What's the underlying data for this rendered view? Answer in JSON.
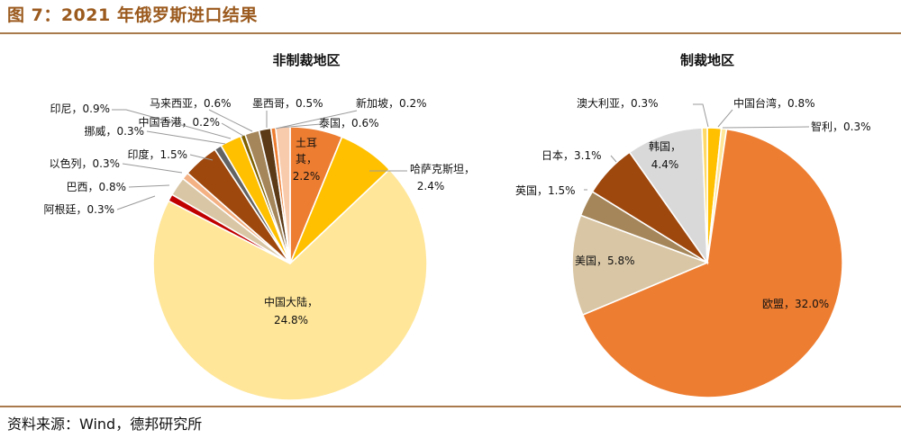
{
  "figure_title": "图 7：2021 年俄罗斯进口结果",
  "source": "资料来源：Wind，德邦研究所",
  "chart_data": [
    {
      "type": "pie",
      "title": "非制裁地区",
      "slices": [
        {
          "label": "土耳其",
          "value": 2.2,
          "pct": "2.2%",
          "color": "#ed7d31"
        },
        {
          "label": "哈萨克斯坦",
          "value": 2.4,
          "pct": "2.4%",
          "color": "#ffc000"
        },
        {
          "label": "中国大陆",
          "value": 24.8,
          "pct": "24.8%",
          "color": "#ffe699"
        },
        {
          "label": "阿根廷",
          "value": 0.3,
          "pct": "0.3%",
          "color": "#c00000"
        },
        {
          "label": "巴西",
          "value": 0.8,
          "pct": "0.8%",
          "color": "#d9c6a5"
        },
        {
          "label": "以色列",
          "value": 0.3,
          "pct": "0.3%",
          "color": "#f4b183"
        },
        {
          "label": "印度",
          "value": 1.5,
          "pct": "1.5%",
          "color": "#9e480e"
        },
        {
          "label": "挪威",
          "value": 0.3,
          "pct": "0.3%",
          "color": "#636363"
        },
        {
          "label": "印尼",
          "value": 0.9,
          "pct": "0.9%",
          "color": "#ffc000"
        },
        {
          "label": "中国香港",
          "value": 0.2,
          "pct": "0.2%",
          "color": "#7f6000"
        },
        {
          "label": "马来西亚",
          "value": 0.6,
          "pct": "0.6%",
          "color": "#a5865a"
        },
        {
          "label": "墨西哥",
          "value": 0.5,
          "pct": "0.5%",
          "color": "#5c3a17"
        },
        {
          "label": "新加坡",
          "value": 0.2,
          "pct": "0.2%",
          "color": "#ed7d31"
        },
        {
          "label": "泰国",
          "value": 0.6,
          "pct": "0.6%",
          "color": "#f8cbad"
        }
      ]
    },
    {
      "type": "pie",
      "title": "制裁地区",
      "slices": [
        {
          "label": "中国台湾",
          "value": 0.8,
          "pct": "0.8%",
          "color": "#ffc000"
        },
        {
          "label": "智利",
          "value": 0.3,
          "pct": "0.3%",
          "color": "#ffe699"
        },
        {
          "label": "欧盟",
          "value": 32.0,
          "pct": "32.0%",
          "color": "#ed7d31"
        },
        {
          "label": "美国",
          "value": 5.8,
          "pct": "5.8%",
          "color": "#d9c6a5"
        },
        {
          "label": "英国",
          "value": 1.5,
          "pct": "1.5%",
          "color": "#a5865a"
        },
        {
          "label": "日本",
          "value": 3.1,
          "pct": "3.1%",
          "color": "#9e480e"
        },
        {
          "label": "韩国",
          "value": 4.4,
          "pct": "4.4%",
          "color": "#d9d9d9"
        },
        {
          "label": "澳大利亚",
          "value": 0.3,
          "pct": "0.3%",
          "color": "#ffd966"
        }
      ]
    }
  ]
}
